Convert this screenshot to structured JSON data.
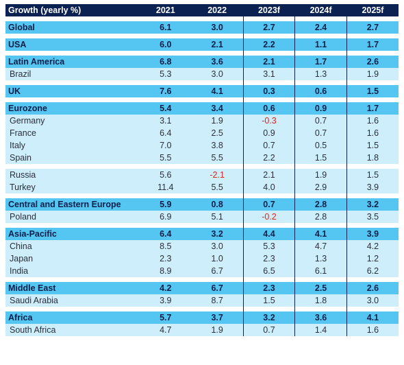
{
  "table": {
    "header": {
      "label": "Growth (yearly %)",
      "years": [
        "2021",
        "2022",
        "2023f",
        "2024f",
        "2025f"
      ]
    },
    "groups": [
      {
        "rows": [
          {
            "name": "Global",
            "type": "region",
            "values": [
              "6.1",
              "3.0",
              "2.7",
              "2.4",
              "2.7"
            ]
          }
        ]
      },
      {
        "rows": [
          {
            "name": "USA",
            "type": "region",
            "values": [
              "6.0",
              "2.1",
              "2.2",
              "1.1",
              "1.7"
            ]
          }
        ]
      },
      {
        "rows": [
          {
            "name": "Latin America",
            "type": "region",
            "values": [
              "6.8",
              "3.6",
              "2.1",
              "1.7",
              "2.6"
            ]
          },
          {
            "name": "Brazil",
            "type": "country",
            "values": [
              "5.3",
              "3.0",
              "3.1",
              "1.3",
              "1.9"
            ]
          }
        ]
      },
      {
        "rows": [
          {
            "name": "UK",
            "type": "region",
            "values": [
              "7.6",
              "4.1",
              "0.3",
              "0.6",
              "1.5"
            ]
          }
        ]
      },
      {
        "rows": [
          {
            "name": "Eurozone",
            "type": "region",
            "values": [
              "5.4",
              "3.4",
              "0.6",
              "0.9",
              "1.7"
            ]
          },
          {
            "name": "Germany",
            "type": "country",
            "values": [
              "3.1",
              "1.9",
              "-0.3",
              "0.7",
              "1.6"
            ]
          },
          {
            "name": "France",
            "type": "country",
            "values": [
              "6.4",
              "2.5",
              "0.9",
              "0.7",
              "1.6"
            ]
          },
          {
            "name": "Italy",
            "type": "country",
            "values": [
              "7.0",
              "3.8",
              "0.7",
              "0.5",
              "1.5"
            ]
          },
          {
            "name": "Spain",
            "type": "country",
            "values": [
              "5.5",
              "5.5",
              "2.2",
              "1.5",
              "1.8"
            ]
          }
        ]
      },
      {
        "rows": [
          {
            "name": "Russia",
            "type": "country",
            "values": [
              "5.6",
              "-2.1",
              "2.1",
              "1.9",
              "1.5"
            ]
          },
          {
            "name": "Turkey",
            "type": "country",
            "values": [
              "11.4",
              "5.5",
              "4.0",
              "2.9",
              "3.9"
            ]
          }
        ]
      },
      {
        "rows": [
          {
            "name": "Central and Eastern Europe",
            "type": "region",
            "values": [
              "5.9",
              "0.8",
              "0.7",
              "2.8",
              "3.2"
            ]
          },
          {
            "name": "Poland",
            "type": "country",
            "values": [
              "6.9",
              "5.1",
              "-0.2",
              "2.8",
              "3.5"
            ]
          }
        ]
      },
      {
        "rows": [
          {
            "name": "Asia-Pacific",
            "type": "region",
            "values": [
              "6.4",
              "3.2",
              "4.4",
              "4.1",
              "3.9"
            ]
          },
          {
            "name": "China",
            "type": "country",
            "values": [
              "8.5",
              "3.0",
              "5.3",
              "4.7",
              "4.2"
            ]
          },
          {
            "name": "Japan",
            "type": "country",
            "values": [
              "2.3",
              "1.0",
              "2.3",
              "1.3",
              "1.2"
            ]
          },
          {
            "name": "India",
            "type": "country",
            "values": [
              "8.9",
              "6.7",
              "6.5",
              "6.1",
              "6.2"
            ]
          }
        ]
      },
      {
        "rows": [
          {
            "name": "Middle East",
            "type": "region",
            "values": [
              "4.2",
              "6.7",
              "2.3",
              "2.5",
              "2.6"
            ]
          },
          {
            "name": "Saudi Arabia",
            "type": "country",
            "values": [
              "3.9",
              "8.7",
              "1.5",
              "1.8",
              "3.0"
            ]
          }
        ]
      },
      {
        "rows": [
          {
            "name": "Africa",
            "type": "region",
            "values": [
              "5.7",
              "3.7",
              "3.2",
              "3.6",
              "4.1"
            ]
          },
          {
            "name": "South Africa",
            "type": "country",
            "values": [
              "4.7",
              "1.9",
              "0.7",
              "1.4",
              "1.6"
            ]
          }
        ]
      }
    ]
  },
  "colors": {
    "header_bg": "#0a2151",
    "region_bg": "#55c6f1",
    "country_bg": "#cdeefa",
    "negative": "#e2231a"
  }
}
